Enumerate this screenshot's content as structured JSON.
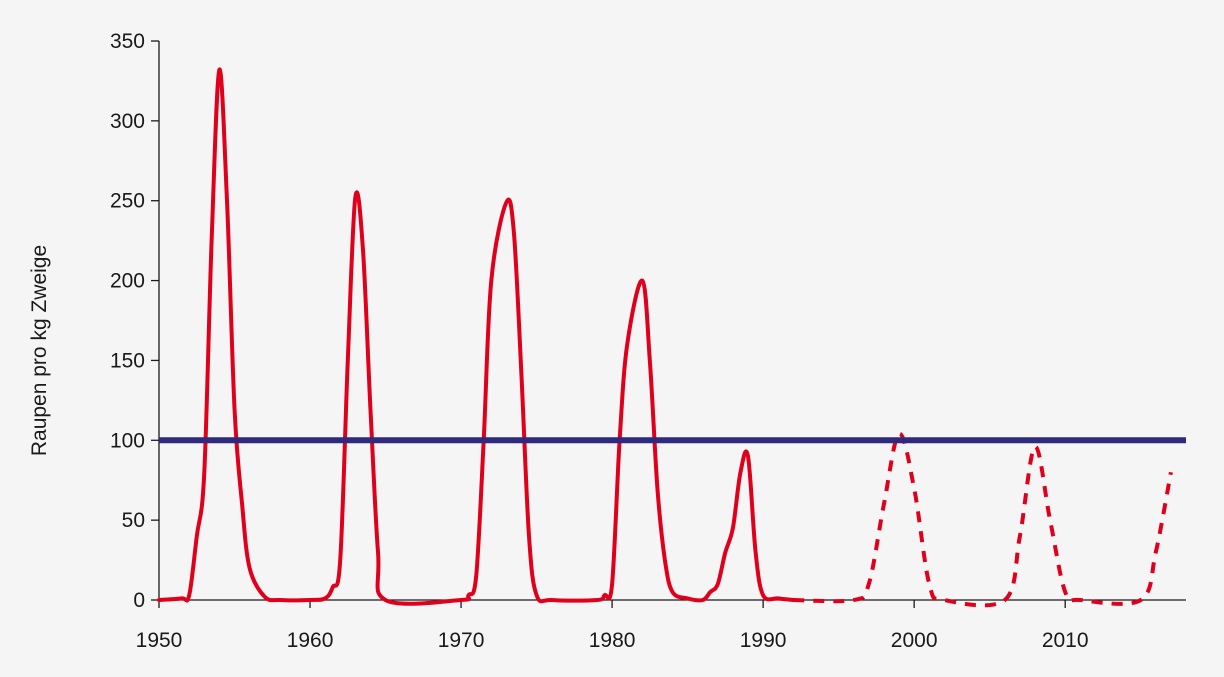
{
  "chart_data": {
    "type": "line",
    "title": "",
    "xlabel": "",
    "ylabel": "Raupen pro kg Zweige",
    "xlim": [
      1950,
      2018
    ],
    "ylim": [
      0,
      350
    ],
    "x_ticks": [
      "1950",
      "1960",
      "1970",
      "1980",
      "1990",
      "2000",
      "2010"
    ],
    "y_ticks": [
      "0",
      "50",
      "100",
      "150",
      "200",
      "250",
      "300",
      "350"
    ],
    "grid": false,
    "legend": "none",
    "colors": {
      "series": "#e0001b",
      "threshold": "#2e2a7e",
      "axis": "#1a1a1a"
    },
    "series": [
      {
        "style": "solid",
        "points": [
          [
            1950,
            0
          ],
          [
            1951.5,
            1
          ],
          [
            1952,
            3
          ],
          [
            1952.5,
            40
          ],
          [
            1953,
            80
          ],
          [
            1953.5,
            230
          ],
          [
            1954,
            332
          ],
          [
            1954.5,
            250
          ],
          [
            1955,
            120
          ],
          [
            1955.5,
            60
          ],
          [
            1956,
            20
          ],
          [
            1957,
            2
          ],
          [
            1958,
            0
          ],
          [
            1960,
            0
          ],
          [
            1961,
            1
          ],
          [
            1961.5,
            8
          ],
          [
            1962,
            25
          ],
          [
            1962.5,
            150
          ],
          [
            1963,
            252
          ],
          [
            1963.5,
            220
          ],
          [
            1964,
            120
          ],
          [
            1964.5,
            30
          ],
          [
            1965,
            0
          ],
          [
            1970,
            0
          ],
          [
            1970.5,
            3
          ],
          [
            1971,
            15
          ],
          [
            1971.5,
            100
          ],
          [
            1972,
            200
          ],
          [
            1973,
            249
          ],
          [
            1973.5,
            230
          ],
          [
            1974,
            140
          ],
          [
            1974.5,
            40
          ],
          [
            1975,
            3
          ],
          [
            1976,
            0
          ],
          [
            1979,
            0
          ],
          [
            1979.5,
            3
          ],
          [
            1980,
            10
          ],
          [
            1980.5,
            100
          ],
          [
            1981,
            160
          ],
          [
            1982,
            200
          ],
          [
            1982.5,
            150
          ],
          [
            1983,
            70
          ],
          [
            1983.5,
            25
          ],
          [
            1984,
            5
          ],
          [
            1985,
            1
          ],
          [
            1986,
            0
          ],
          [
            1986.5,
            5
          ],
          [
            1987,
            10
          ],
          [
            1987.5,
            30
          ],
          [
            1988,
            45
          ],
          [
            1988.5,
            80
          ],
          [
            1989,
            90
          ],
          [
            1989.5,
            30
          ],
          [
            1990,
            3
          ],
          [
            1991,
            1
          ],
          [
            1992,
            0
          ]
        ]
      },
      {
        "style": "dashed",
        "points": [
          [
            1992,
            0
          ],
          [
            1996,
            0
          ],
          [
            1997,
            10
          ],
          [
            1998,
            60
          ],
          [
            1999,
            104
          ],
          [
            2000,
            70
          ],
          [
            2001,
            10
          ],
          [
            2002,
            0
          ],
          [
            2006,
            0
          ],
          [
            2007,
            40
          ],
          [
            2008,
            96
          ],
          [
            2009,
            50
          ],
          [
            2010,
            5
          ],
          [
            2011,
            0
          ],
          [
            2015,
            0
          ],
          [
            2016,
            30
          ],
          [
            2017,
            80
          ]
        ]
      },
      {
        "style": "threshold",
        "points": [
          [
            1950,
            100
          ],
          [
            2018,
            100
          ]
        ]
      }
    ]
  }
}
